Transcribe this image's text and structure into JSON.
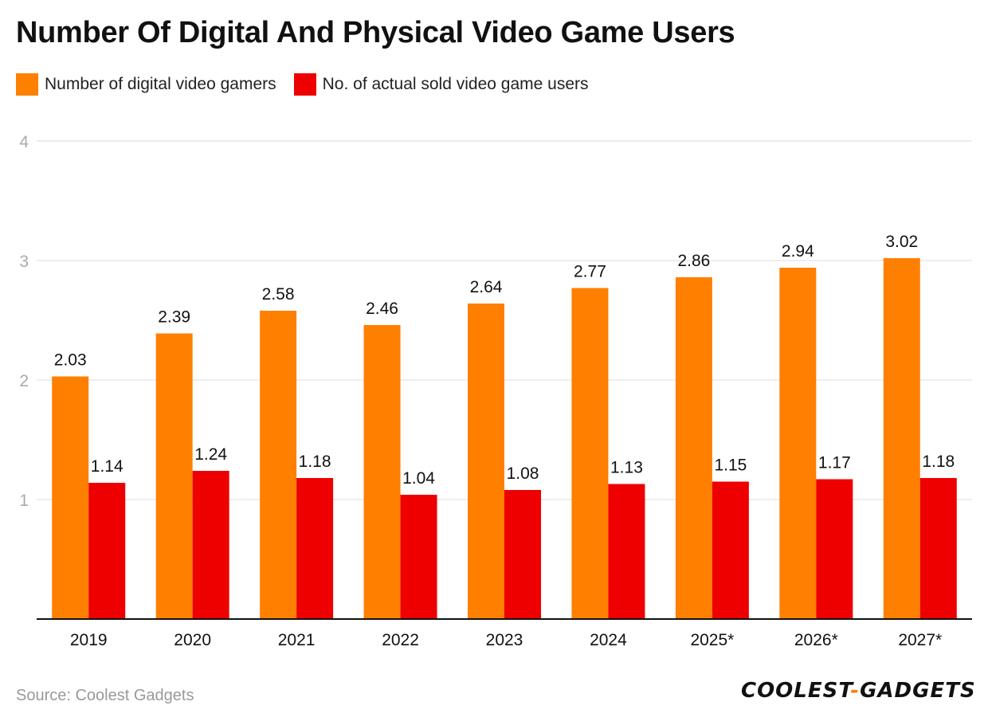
{
  "source": "Source: Coolest Gadgets",
  "brand": {
    "left": "COOLEST",
    "dash": "-",
    "right": "GADGETS"
  },
  "colors": {
    "digital": "#ff7f00",
    "physical": "#ef0000",
    "grid": "#dddddd",
    "axis": "#111111",
    "tick": "#aaaaaa"
  },
  "chart_data": {
    "type": "bar",
    "title": "Number Of Digital And Physical Video Game Users",
    "xlabel": "",
    "ylabel": "",
    "ylim": [
      0,
      4
    ],
    "yticks": [
      1,
      2,
      3,
      4
    ],
    "grid": true,
    "legend_position": "top-left",
    "categories": [
      "2019",
      "2020",
      "2021",
      "2022",
      "2023",
      "2024",
      "2025*",
      "2026*",
      "2027*"
    ],
    "series": [
      {
        "name": "Number of digital video gamers",
        "values": [
          2.03,
          2.39,
          2.58,
          2.46,
          2.64,
          2.77,
          2.86,
          2.94,
          3.02
        ]
      },
      {
        "name": "No. of actual sold video game users",
        "values": [
          1.14,
          1.24,
          1.18,
          1.04,
          1.08,
          1.13,
          1.15,
          1.17,
          1.18
        ]
      }
    ]
  }
}
